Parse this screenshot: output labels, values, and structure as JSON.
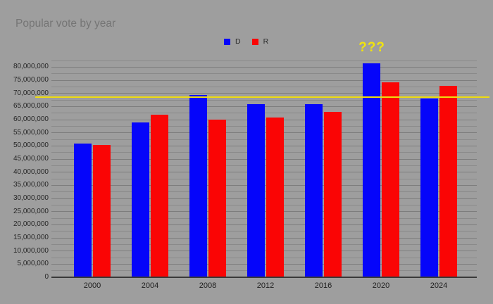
{
  "colors": {
    "background": "#9e9e9e",
    "title_text": "#757575",
    "axis_text": "#262626",
    "gridline": "#8a8a8a",
    "axis_line": "#3a3a3a",
    "annotation_yellow": "#f2e40c",
    "reference_line_yellow": "#eedc10",
    "d_blue": "#0505fa",
    "r_red": "#fa0505"
  },
  "chart_data": {
    "type": "bar",
    "title": "Popular vote by year",
    "xlabel": "",
    "ylabel": "",
    "categories": [
      "2000",
      "2004",
      "2008",
      "2012",
      "2016",
      "2020",
      "2024"
    ],
    "series": [
      {
        "name": "D",
        "color": "#0505fa",
        "values": [
          51000000,
          59000000,
          69500000,
          65900000,
          65900000,
          81300000,
          68000000
        ]
      },
      {
        "name": "R",
        "color": "#fa0505",
        "values": [
          50300000,
          62000000,
          60000000,
          60900000,
          63000000,
          74200000,
          72800000
        ]
      }
    ],
    "ylim": [
      0,
      82500000
    ],
    "ytick_step": 5000000,
    "ytick_labels": [
      "0",
      "5,000,000",
      "10,000,000",
      "15,000,000",
      "20,000,000",
      "25,000,000",
      "30,000,000",
      "35,000,000",
      "40,000,000",
      "45,000,000",
      "50,000,000",
      "55,000,000",
      "60,000,000",
      "65,000,000",
      "70,000,000",
      "75,000,000",
      "80,000,000"
    ],
    "minor_grid_step": 2500000,
    "grid": true,
    "legend_position": "top",
    "reference_line": {
      "value": 68500000,
      "color": "#eedc10"
    },
    "annotation": {
      "text": "???",
      "category": "2020",
      "series": "D",
      "color": "#f2e40c"
    }
  }
}
